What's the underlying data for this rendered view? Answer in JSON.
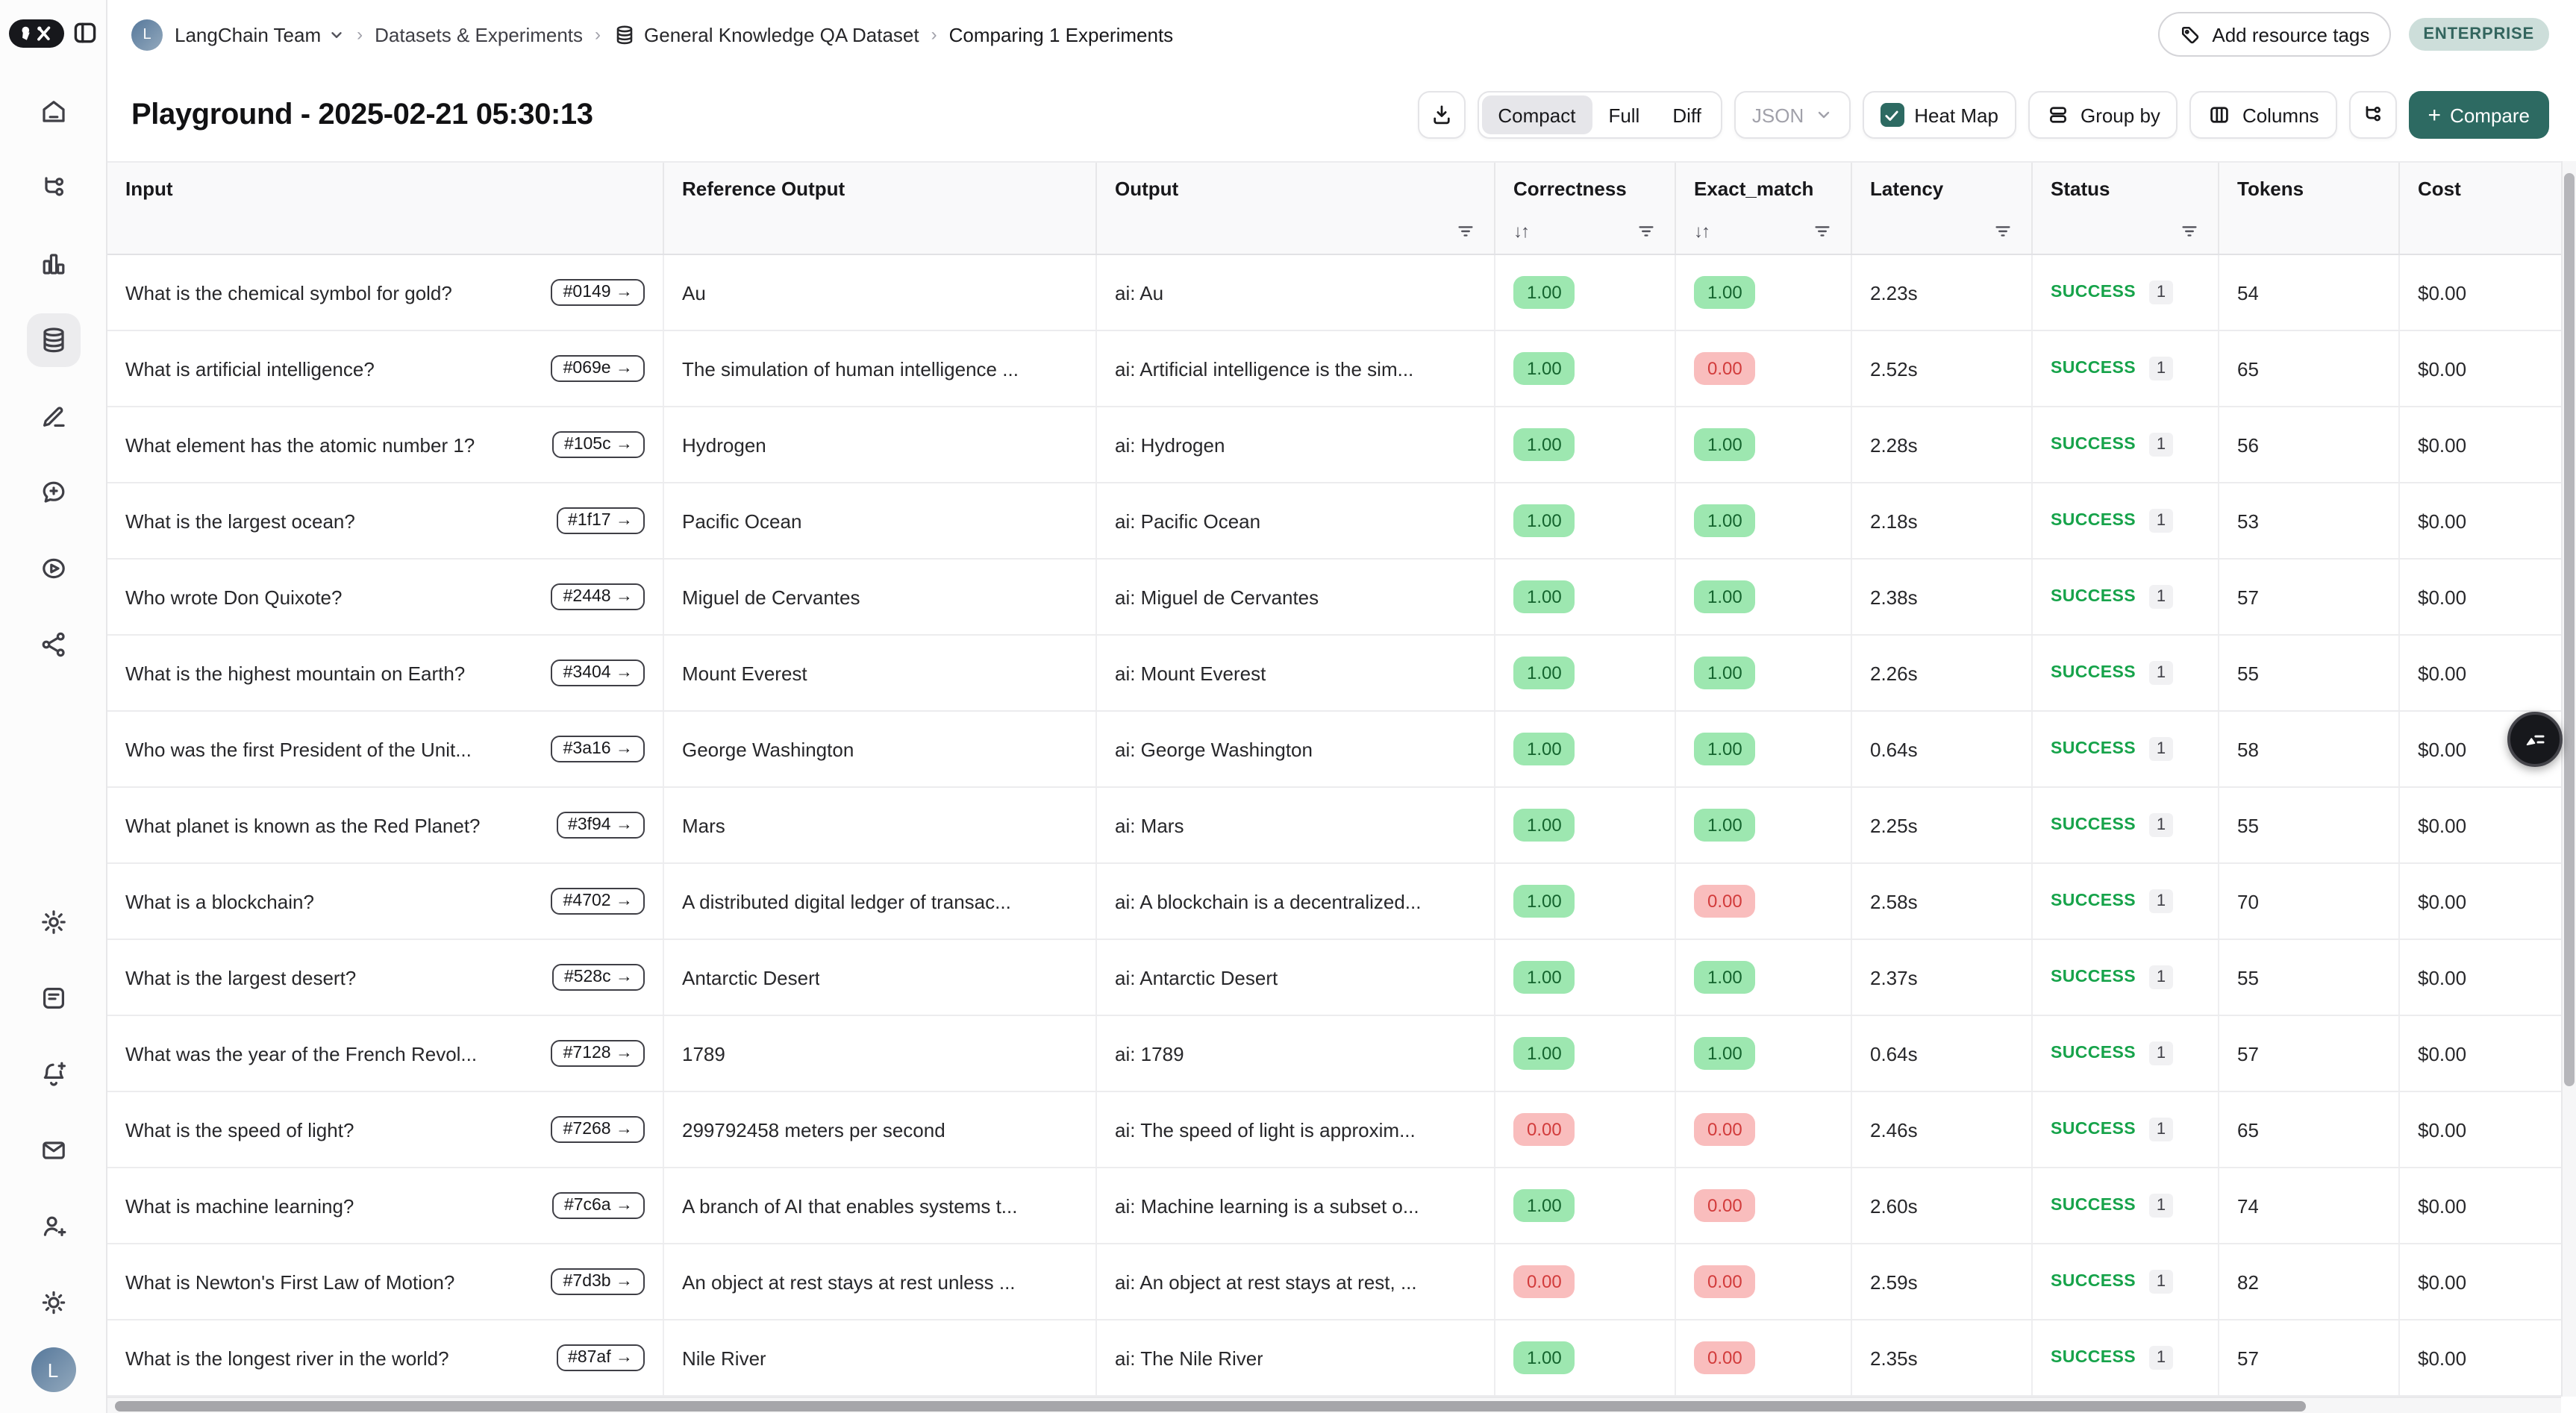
{
  "breadcrumb": {
    "avatar_letter": "L",
    "team": "LangChain Team",
    "section": "Datasets & Experiments",
    "dataset": "General Knowledge QA Dataset",
    "current": "Comparing 1 Experiments"
  },
  "topbar": {
    "add_resource_tags": "Add resource tags",
    "plan_badge": "ENTERPRISE"
  },
  "header": {
    "title": "Playground - 2025-02-21 05:30:13"
  },
  "toolbar": {
    "view_modes": [
      "Compact",
      "Full",
      "Diff"
    ],
    "active_view": "Compact",
    "format_label": "JSON",
    "heatmap_label": "Heat Map",
    "heatmap_checked": true,
    "groupby_label": "Group by",
    "columns_label": "Columns",
    "compare_plus": "+",
    "compare_label": "Compare"
  },
  "sidebar": {
    "top_icons": [
      "home-icon",
      "tracing-icon",
      "monitoring-icon",
      "datasets-icon",
      "annotations-icon",
      "prompts-icon",
      "playground-icon",
      "deployments-icon"
    ],
    "active_icon": "datasets-icon",
    "bottom_icons": [
      "settings-icon",
      "docs-icon",
      "notifications-icon",
      "mail-icon",
      "invite-user-icon",
      "theme-icon"
    ],
    "avatar_letter": "L"
  },
  "table": {
    "columns": [
      {
        "label": "Input",
        "sort": false,
        "filter": false
      },
      {
        "label": "Reference Output",
        "sort": false,
        "filter": false
      },
      {
        "label": "Output",
        "sort": false,
        "filter": true
      },
      {
        "label": "Correctness",
        "sort": true,
        "filter": true
      },
      {
        "label": "Exact_match",
        "sort": true,
        "filter": true
      },
      {
        "label": "Latency",
        "sort": false,
        "filter": true
      },
      {
        "label": "Status",
        "sort": false,
        "filter": true
      },
      {
        "label": "Tokens",
        "sort": false,
        "filter": false
      },
      {
        "label": "Cost",
        "sort": false,
        "filter": false
      }
    ],
    "rows": [
      {
        "input": "What is the chemical symbol for gold?",
        "ref_id": "#0149",
        "reference": "Au",
        "output": "ai: Au",
        "correctness": "1.00",
        "exact_match": "1.00",
        "latency": "2.23s",
        "status": "SUCCESS",
        "run_count": "1",
        "tokens": "54",
        "cost": "$0.00"
      },
      {
        "input": "What is artificial intelligence?",
        "ref_id": "#069e",
        "reference": "The simulation of human intelligence ...",
        "output": "ai: Artificial intelligence is the sim...",
        "correctness": "1.00",
        "exact_match": "0.00",
        "latency": "2.52s",
        "status": "SUCCESS",
        "run_count": "1",
        "tokens": "65",
        "cost": "$0.00"
      },
      {
        "input": "What element has the atomic number 1?",
        "ref_id": "#105c",
        "reference": "Hydrogen",
        "output": "ai: Hydrogen",
        "correctness": "1.00",
        "exact_match": "1.00",
        "latency": "2.28s",
        "status": "SUCCESS",
        "run_count": "1",
        "tokens": "56",
        "cost": "$0.00"
      },
      {
        "input": "What is the largest ocean?",
        "ref_id": "#1f17",
        "reference": "Pacific Ocean",
        "output": "ai: Pacific Ocean",
        "correctness": "1.00",
        "exact_match": "1.00",
        "latency": "2.18s",
        "status": "SUCCESS",
        "run_count": "1",
        "tokens": "53",
        "cost": "$0.00"
      },
      {
        "input": "Who wrote Don Quixote?",
        "ref_id": "#2448",
        "reference": "Miguel de Cervantes",
        "output": "ai: Miguel de Cervantes",
        "correctness": "1.00",
        "exact_match": "1.00",
        "latency": "2.38s",
        "status": "SUCCESS",
        "run_count": "1",
        "tokens": "57",
        "cost": "$0.00"
      },
      {
        "input": "What is the highest mountain on Earth?",
        "ref_id": "#3404",
        "reference": "Mount Everest",
        "output": "ai: Mount Everest",
        "correctness": "1.00",
        "exact_match": "1.00",
        "latency": "2.26s",
        "status": "SUCCESS",
        "run_count": "1",
        "tokens": "55",
        "cost": "$0.00"
      },
      {
        "input": "Who was the first President of the Unit...",
        "ref_id": "#3a16",
        "reference": "George Washington",
        "output": "ai: George Washington",
        "correctness": "1.00",
        "exact_match": "1.00",
        "latency": "0.64s",
        "status": "SUCCESS",
        "run_count": "1",
        "tokens": "58",
        "cost": "$0.00"
      },
      {
        "input": "What planet is known as the Red Planet?",
        "ref_id": "#3f94",
        "reference": "Mars",
        "output": "ai: Mars",
        "correctness": "1.00",
        "exact_match": "1.00",
        "latency": "2.25s",
        "status": "SUCCESS",
        "run_count": "1",
        "tokens": "55",
        "cost": "$0.00"
      },
      {
        "input": "What is a blockchain?",
        "ref_id": "#4702",
        "reference": "A distributed digital ledger of transac...",
        "output": "ai: A blockchain is a decentralized...",
        "correctness": "1.00",
        "exact_match": "0.00",
        "latency": "2.58s",
        "status": "SUCCESS",
        "run_count": "1",
        "tokens": "70",
        "cost": "$0.00"
      },
      {
        "input": "What is the largest desert?",
        "ref_id": "#528c",
        "reference": "Antarctic Desert",
        "output": "ai: Antarctic Desert",
        "correctness": "1.00",
        "exact_match": "1.00",
        "latency": "2.37s",
        "status": "SUCCESS",
        "run_count": "1",
        "tokens": "55",
        "cost": "$0.00"
      },
      {
        "input": "What was the year of the French Revol...",
        "ref_id": "#7128",
        "reference": "1789",
        "output": "ai: 1789",
        "correctness": "1.00",
        "exact_match": "1.00",
        "latency": "0.64s",
        "status": "SUCCESS",
        "run_count": "1",
        "tokens": "57",
        "cost": "$0.00"
      },
      {
        "input": "What is the speed of light?",
        "ref_id": "#7268",
        "reference": "299792458 meters per second",
        "output": "ai: The speed of light is approxim...",
        "correctness": "0.00",
        "exact_match": "0.00",
        "latency": "2.46s",
        "status": "SUCCESS",
        "run_count": "1",
        "tokens": "65",
        "cost": "$0.00"
      },
      {
        "input": "What is machine learning?",
        "ref_id": "#7c6a",
        "reference": "A branch of AI that enables systems t...",
        "output": "ai: Machine learning is a subset o...",
        "correctness": "1.00",
        "exact_match": "0.00",
        "latency": "2.60s",
        "status": "SUCCESS",
        "run_count": "1",
        "tokens": "74",
        "cost": "$0.00"
      },
      {
        "input": "What is Newton's First Law of Motion?",
        "ref_id": "#7d3b",
        "reference": "An object at rest stays at rest unless ...",
        "output": "ai: An object at rest stays at rest, ...",
        "correctness": "0.00",
        "exact_match": "0.00",
        "latency": "2.59s",
        "status": "SUCCESS",
        "run_count": "1",
        "tokens": "82",
        "cost": "$0.00"
      },
      {
        "input": "What is the longest river in the world?",
        "ref_id": "#87af",
        "reference": "Nile River",
        "output": "ai: The Nile River",
        "correctness": "1.00",
        "exact_match": "0.00",
        "latency": "2.35s",
        "status": "SUCCESS",
        "run_count": "1",
        "tokens": "57",
        "cost": "$0.00"
      }
    ]
  },
  "colors": {
    "brand_teal": "#2d6a62",
    "success_green": "#16a34a",
    "heat_green_bg": "#9de7b0",
    "heat_green_text": "#14642e",
    "heat_red_bg": "#f9bdbd",
    "heat_red_text": "#d23b3b",
    "enterprise_bg": "#cddeda",
    "enterprise_text": "#33655e"
  }
}
